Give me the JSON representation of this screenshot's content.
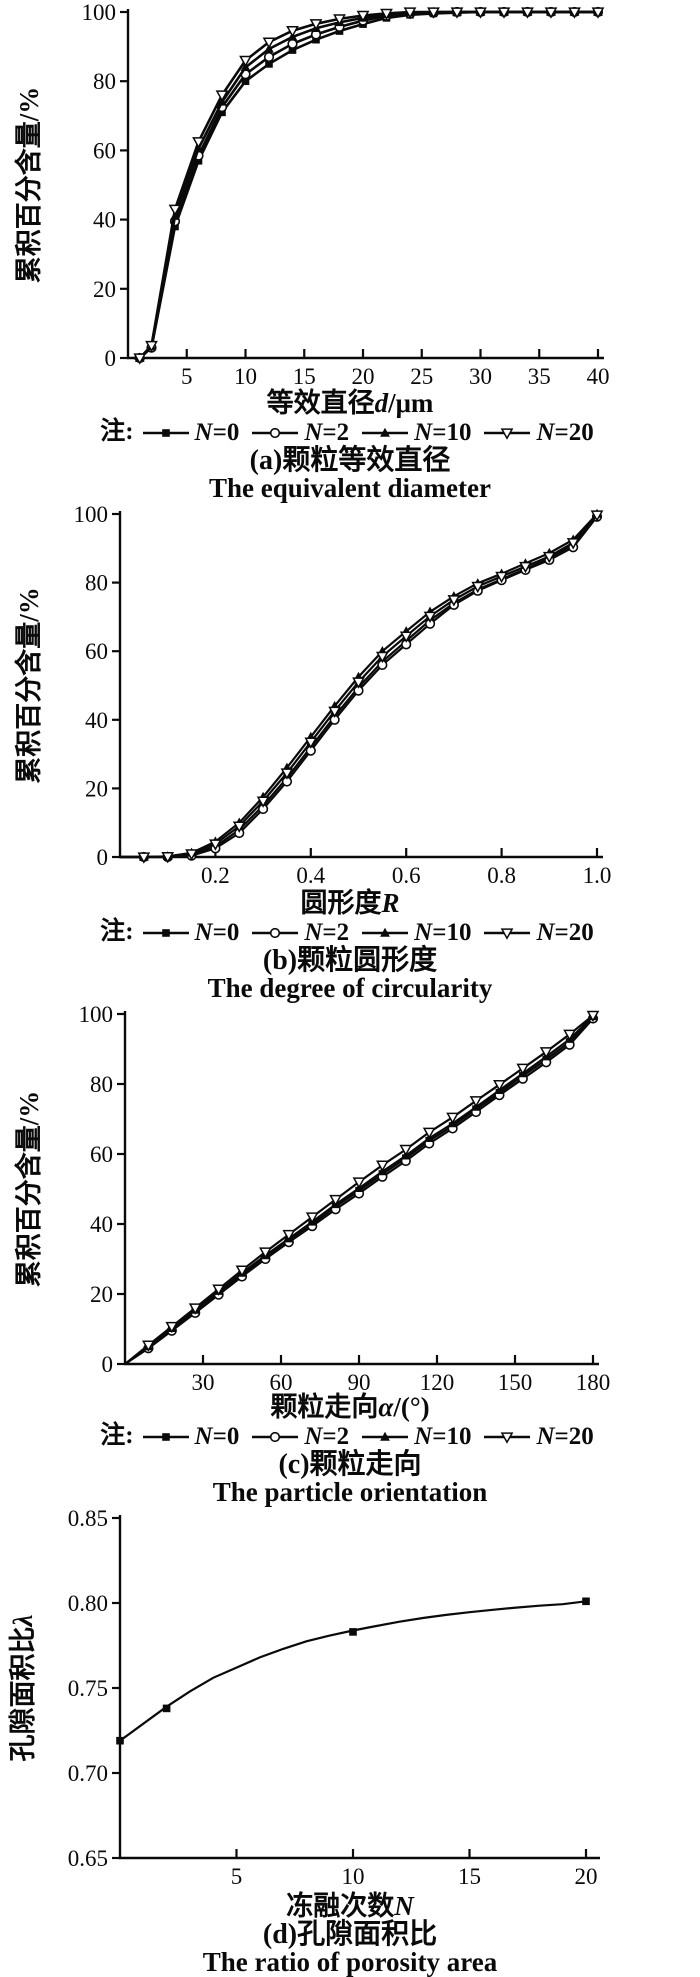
{
  "page": {
    "background": "#ffffff",
    "ink": "#0a0a0a"
  },
  "legend": {
    "prefix": "注:",
    "items": [
      {
        "marker": "square-filled",
        "var": "N",
        "rest": "=0"
      },
      {
        "marker": "circle-open",
        "var": "N",
        "rest": "=2"
      },
      {
        "marker": "triangle-filled",
        "var": "N",
        "rest": "=10"
      },
      {
        "marker": "triangle-down-open",
        "var": "N",
        "rest": "=20"
      }
    ]
  },
  "chart_data": [
    {
      "id": "a",
      "type": "line",
      "caption_cn": "(a)颗粒等效直径",
      "caption_en": "The equivalent diameter",
      "ylabel_segments": [
        {
          "t": "累积百分含量/%"
        }
      ],
      "xlabel_segments": [
        {
          "t": "等效直径"
        },
        {
          "t": "d",
          "i": true
        },
        {
          "t": "/μm"
        }
      ],
      "xlim": [
        0,
        40
      ],
      "ylim": [
        0,
        100
      ],
      "xtick_vals": [
        5,
        10,
        15,
        20,
        25,
        30,
        35,
        40
      ],
      "xticks": [
        "5",
        "10",
        "15",
        "20",
        "25",
        "30",
        "35",
        "40"
      ],
      "ytick_vals": [
        0,
        20,
        40,
        60,
        80,
        100
      ],
      "yticks": [
        "0",
        "20",
        "40",
        "60",
        "80",
        "100"
      ],
      "grid": false,
      "legend_position": "below",
      "show_legend": true,
      "x": [
        1,
        2,
        4,
        6,
        8,
        10,
        12,
        14,
        16,
        18,
        20,
        22,
        24,
        26,
        28,
        30,
        32,
        34,
        36,
        38,
        40
      ],
      "line_start": [
        0.5,
        0
      ],
      "series": [
        {
          "key": "n0",
          "name": "N=0",
          "marker": "square-filled",
          "y": [
            0,
            3,
            38,
            57,
            71,
            80,
            85,
            89,
            92,
            94.5,
            96.5,
            98.3,
            99.2,
            99.6,
            99.8,
            100,
            100,
            100,
            100,
            100,
            100
          ]
        },
        {
          "key": "n2",
          "name": "N=2",
          "marker": "circle-open",
          "y": [
            0,
            3,
            39.5,
            58.5,
            72.5,
            82,
            87,
            90.8,
            93.5,
            95.7,
            97.5,
            98.9,
            99.5,
            99.8,
            100,
            100,
            100,
            100,
            100,
            100,
            100
          ]
        },
        {
          "key": "n10",
          "name": "N=10",
          "marker": "triangle-filled",
          "y": [
            0,
            3.3,
            41,
            60.5,
            74,
            84,
            89.3,
            92.8,
            95.3,
            97,
            98.3,
            99.3,
            99.8,
            100,
            100,
            100,
            100,
            100,
            100,
            100,
            100
          ]
        },
        {
          "key": "n20",
          "name": "N=20",
          "marker": "triangle-down-open",
          "y": [
            0,
            3.6,
            43,
            62.5,
            76,
            86,
            91.3,
            94.6,
            96.6,
            98,
            99,
            99.6,
            100,
            100,
            100,
            100,
            100,
            100,
            100,
            100,
            100
          ]
        }
      ]
    },
    {
      "id": "b",
      "type": "line",
      "caption_cn": "(b)颗粒圆形度",
      "caption_en": "The degree of circularity",
      "ylabel_segments": [
        {
          "t": "累积百分含量/%"
        }
      ],
      "xlabel_segments": [
        {
          "t": "圆形度"
        },
        {
          "t": "R",
          "i": true
        }
      ],
      "xlim": [
        0,
        1.0
      ],
      "ylim": [
        0,
        100
      ],
      "xtick_vals": [
        0.2,
        0.4,
        0.6,
        0.8,
        1.0
      ],
      "xticks": [
        "0.2",
        "0.4",
        "0.6",
        "0.8",
        "1.0"
      ],
      "ytick_vals": [
        0,
        20,
        40,
        60,
        80,
        100
      ],
      "yticks": [
        "0",
        "20",
        "40",
        "60",
        "80",
        "100"
      ],
      "grid": false,
      "legend_position": "below",
      "show_legend": true,
      "x": [
        0.05,
        0.1,
        0.15,
        0.2,
        0.25,
        0.3,
        0.35,
        0.4,
        0.45,
        0.5,
        0.55,
        0.6,
        0.65,
        0.7,
        0.75,
        0.8,
        0.85,
        0.9,
        0.95,
        1.0
      ],
      "line_start": [
        0,
        0
      ],
      "series": [
        {
          "key": "n0",
          "name": "N=0",
          "marker": "square-filled",
          "y": [
            0,
            0,
            0.6,
            3,
            8,
            15,
            23,
            32,
            41,
            49.5,
            57,
            63,
            69,
            74,
            78,
            81,
            84,
            87,
            91,
            99.5
          ]
        },
        {
          "key": "n2",
          "name": "N=2",
          "marker": "circle-open",
          "y": [
            0,
            0,
            0.4,
            2.5,
            7,
            14,
            22,
            31,
            40,
            48.5,
            56,
            62,
            68,
            73.5,
            77.6,
            80.7,
            83.7,
            86.6,
            90.3,
            99.2
          ]
        },
        {
          "key": "n10",
          "name": "N=10",
          "marker": "triangle-filled",
          "y": [
            0,
            0.2,
            1.2,
            4.5,
            10,
            17.5,
            26,
            35,
            44,
            52.5,
            60,
            65.8,
            71.5,
            76,
            79.8,
            82.6,
            85.6,
            88.6,
            92.5,
            100
          ]
        },
        {
          "key": "n20",
          "name": "N=20",
          "marker": "triangle-down-open",
          "y": [
            0,
            0.1,
            0.9,
            3.8,
            9,
            16.3,
            24.5,
            33.5,
            42.5,
            51,
            58.5,
            64.4,
            70.2,
            75,
            78.9,
            81.8,
            84.7,
            87.6,
            91.6,
            99.7
          ]
        }
      ]
    },
    {
      "id": "c",
      "type": "line",
      "caption_cn": "(c)颗粒走向",
      "caption_en": "The particle orientation",
      "ylabel_segments": [
        {
          "t": "累积百分含量/%"
        }
      ],
      "xlabel_segments": [
        {
          "t": "颗粒走向"
        },
        {
          "t": "α",
          "i": true
        },
        {
          "t": "/(°)"
        }
      ],
      "xlim": [
        0,
        180
      ],
      "ylim": [
        0,
        100
      ],
      "xtick_vals": [
        30,
        60,
        90,
        120,
        150,
        180
      ],
      "xticks": [
        "30",
        "60",
        "90",
        "120",
        "150",
        "180"
      ],
      "ytick_vals": [
        0,
        20,
        40,
        60,
        80,
        100
      ],
      "yticks": [
        "0",
        "20",
        "40",
        "60",
        "80",
        "100"
      ],
      "grid": false,
      "legend_position": "below",
      "show_legend": true,
      "x": [
        9,
        18,
        27,
        36,
        45,
        54,
        63,
        72,
        81,
        90,
        99,
        108,
        117,
        126,
        135,
        144,
        153,
        162,
        171,
        180
      ],
      "line_start": [
        0,
        0
      ],
      "series": [
        {
          "key": "n0",
          "name": "N=0",
          "marker": "square-filled",
          "y": [
            4.8,
            9.8,
            15,
            20.3,
            25.5,
            30.5,
            35.3,
            40,
            45,
            49.5,
            54.3,
            58.8,
            63.8,
            68,
            72.8,
            77.5,
            82.3,
            87,
            92,
            99
          ]
        },
        {
          "key": "n2",
          "name": "N=2",
          "marker": "circle-open",
          "y": [
            4.5,
            9.5,
            14.6,
            19.8,
            25,
            30,
            34.8,
            39.4,
            44.2,
            48.7,
            53.5,
            58,
            63,
            67.3,
            72,
            76.8,
            81.5,
            86.2,
            91.2,
            98.7
          ]
        },
        {
          "key": "n10",
          "name": "N=10",
          "marker": "triangle-filled",
          "y": [
            5,
            10.2,
            15.4,
            20.8,
            26,
            31,
            35.8,
            40.6,
            45.6,
            50.2,
            55,
            59.5,
            64.5,
            68.7,
            73.4,
            78.2,
            83,
            87.8,
            92.8,
            99.3
          ]
        },
        {
          "key": "n20",
          "name": "N=20",
          "marker": "triangle-down-open",
          "y": [
            5.4,
            10.7,
            16,
            21.4,
            26.8,
            32,
            37,
            42,
            47,
            52,
            56.8,
            61.3,
            66.2,
            70.5,
            75.2,
            79.8,
            84.5,
            89.2,
            94.2,
            99.6
          ]
        }
      ]
    },
    {
      "id": "d",
      "type": "line",
      "caption_cn": "(d)孔隙面积比",
      "caption_en": "The ratio of porosity area",
      "ylabel_segments": [
        {
          "t": "孔隙面积比"
        },
        {
          "t": "λ",
          "i": true
        }
      ],
      "xlabel_segments": [
        {
          "t": "冻融次数"
        },
        {
          "t": "N",
          "i": true
        }
      ],
      "xlim": [
        0,
        20
      ],
      "ylim": [
        0.65,
        0.85
      ],
      "xtick_vals": [
        5,
        10,
        15,
        20
      ],
      "xticks": [
        "5",
        "10",
        "15",
        "20"
      ],
      "ytick_vals": [
        0.65,
        0.7,
        0.75,
        0.8,
        0.85
      ],
      "yticks": [
        "0.65",
        "0.70",
        "0.75",
        "0.80",
        "0.85"
      ],
      "grid": false,
      "legend_position": "none",
      "show_legend": false,
      "x": [
        0,
        1,
        2,
        3,
        4,
        5,
        6,
        7,
        8,
        9,
        10,
        11,
        12,
        13,
        14,
        15,
        16,
        17,
        18,
        19,
        20
      ],
      "series": [
        {
          "key": "lambda",
          "name": "孔隙面积比",
          "marker": "square-filled",
          "y": [
            0.719,
            0.729,
            0.739,
            0.748,
            0.756,
            0.762,
            0.768,
            0.773,
            0.7775,
            0.7808,
            0.7838,
            0.7865,
            0.789,
            0.7912,
            0.793,
            0.7946,
            0.796,
            0.7973,
            0.7984,
            0.7993,
            0.801
          ],
          "mx": [
            0,
            2,
            10,
            20
          ],
          "my": [
            0.719,
            0.738,
            0.783,
            0.801
          ]
        }
      ]
    }
  ]
}
